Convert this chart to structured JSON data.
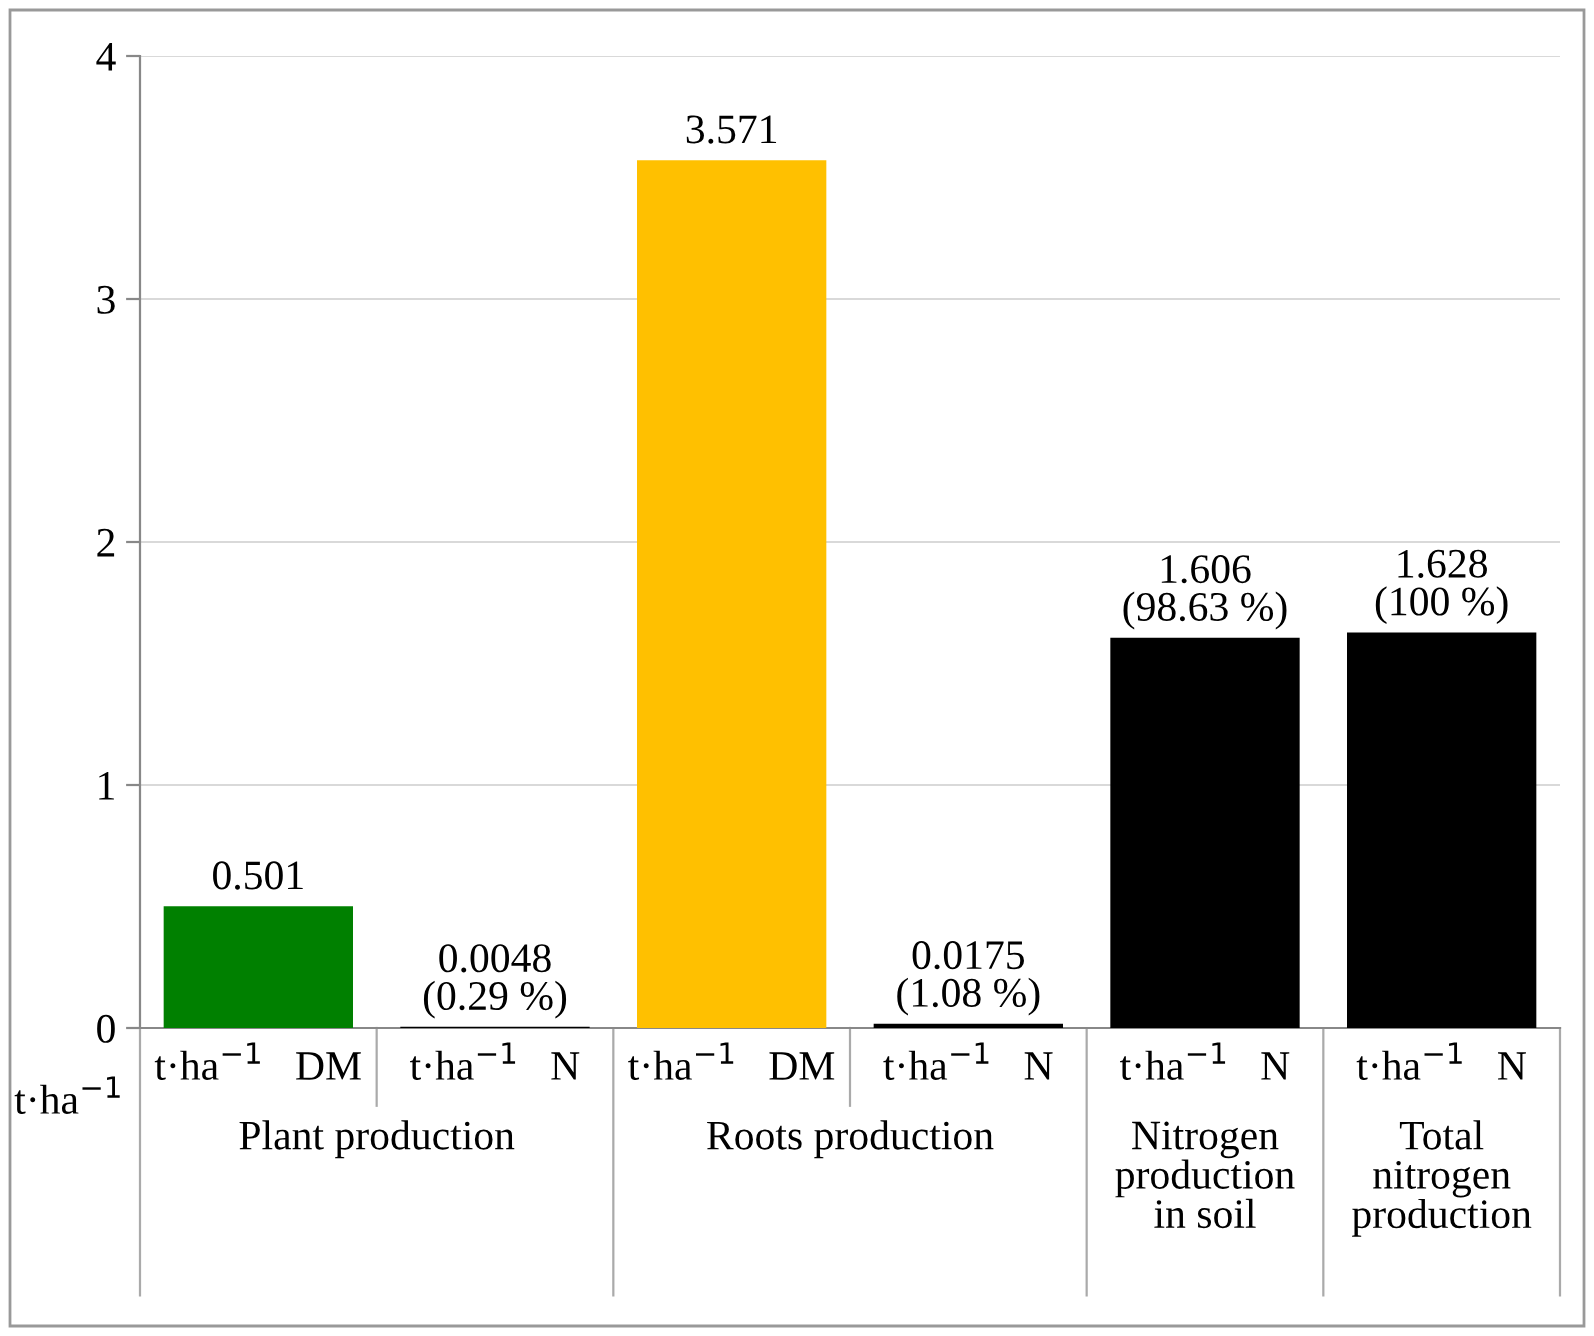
{
  "chart_data": {
    "type": "bar",
    "ylabel": "t·ha$^{−1}$",
    "categories": [
      "t·ha$^{−1}$   DM",
      "t·ha$^{−1}$   N",
      "t·ha$^{−1}$   DM",
      "t·ha$^{−1}$   N",
      "t·ha$^{−1}$   N",
      "t·ha$^{−1}$   N"
    ],
    "values": [
      0.501,
      0.0048,
      3.571,
      0.0175,
      1.606,
      1.628
    ],
    "colors": [
      "#008000",
      "#000000",
      "#ffc000",
      "#000000",
      "#000000",
      "#000000"
    ],
    "value_labels": [
      "0.501",
      "0.0048\n(0.29 %)",
      "3.571",
      "0.0175\n(1.08 %)",
      "1.606\n(98.63 %)",
      "1.628\n(100 %)"
    ],
    "annotations": [
      "Plant production",
      "Roots production",
      "Nitrogen\nproduction\nin soil",
      "Total\nnitrogen\nproduction"
    ],
    "ylim": [
      0,
      4
    ],
    "yticks": [
      0,
      1,
      2,
      3,
      4
    ],
    "grid": "y"
  }
}
